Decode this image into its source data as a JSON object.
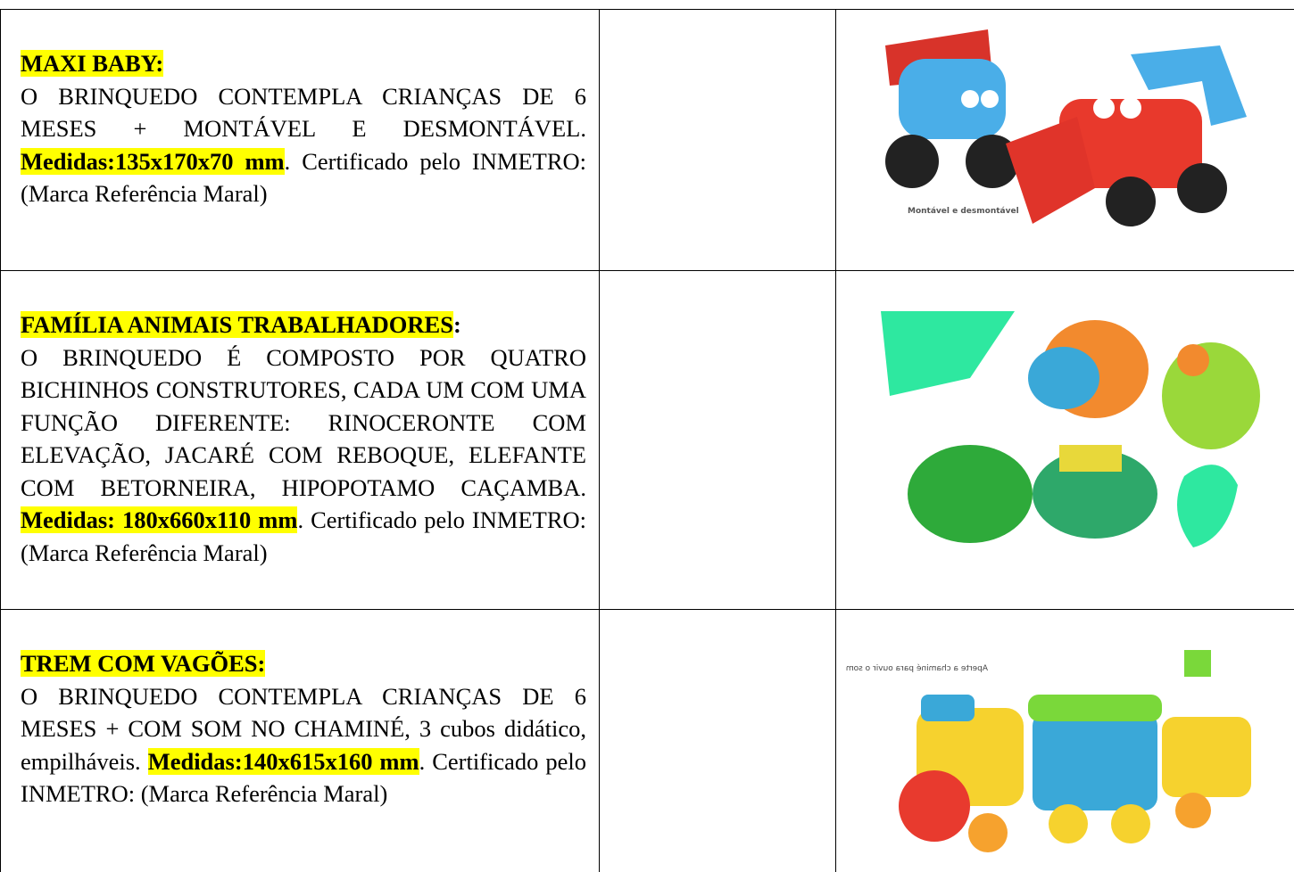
{
  "table": {
    "rows": [
      {
        "title": "MAXI BABY:",
        "text": "O BRINQUEDO CONTEMPLA CRIANÇAS DE 6 MESES + MONTÁVEL E DESMONTÁVEL.",
        "measures": "Medidas:135x170x70 mm",
        "after": ". Certificado pelo INMETRO: (Marca Referência Maral)",
        "image_caption": "Montável e desmontável"
      },
      {
        "title": "FAMÍLIA ANIMAIS TRABALHADORES",
        "title_suffix": ":",
        "text": "O BRINQUEDO É COMPOSTO POR QUATRO BICHINHOS CONSTRUTORES, CADA UM COM UMA FUNÇÃO DIFERENTE: RINOCERONTE COM ELEVAÇÃO, JACARÉ COM REBOQUE, ELEFANTE COM BETORNEIRA, HIPOPOTAMO CAÇAMBA.",
        "measures": "Medidas: 180x660x110 mm",
        "after": ". Certificado pelo INMETRO: (Marca Referência Maral)"
      },
      {
        "title": "TREM COM VAGÕES:",
        "text": "O BRINQUEDO CONTEMPLA CRIANÇAS DE 6 MESES + COM SOM NO CHAMINÉ, 3 cubos didático, empilháveis.",
        "measures": "Medidas:140x615x160 mm",
        "after": ". Certificado pelo INMETRO: (Marca Referência Maral)",
        "image_caption": "Aperte a chaminé para ouvir o som"
      }
    ]
  }
}
